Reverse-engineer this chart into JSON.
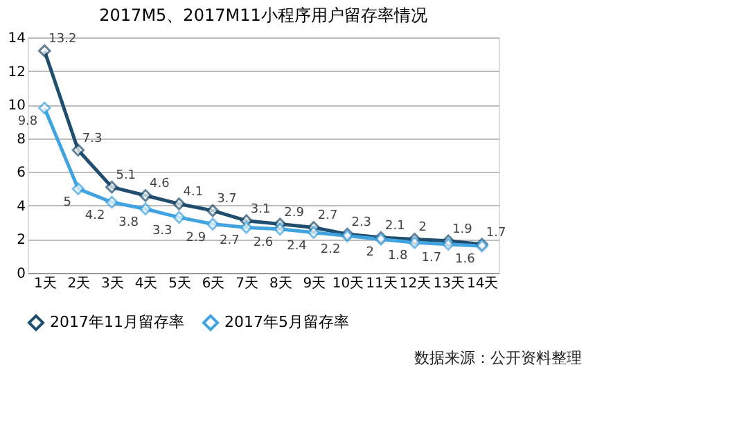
{
  "chart_data": {
    "type": "line",
    "title": "2017M5、2017M11小程序用户留存率情况",
    "categories": [
      "1天",
      "2天",
      "3天",
      "4天",
      "5天",
      "6天",
      "7天",
      "8天",
      "9天",
      "10天",
      "11天",
      "12天",
      "13天",
      "14天"
    ],
    "series": [
      {
        "name": "2017年11月留存率",
        "color": "#1f4e6e",
        "values": [
          13.2,
          7.3,
          5.1,
          4.6,
          4.1,
          3.7,
          3.1,
          2.9,
          2.7,
          2.3,
          2.1,
          2,
          1.9,
          1.7
        ]
      },
      {
        "name": "2017年5月留存率",
        "color": "#41a4e0",
        "values": [
          9.8,
          5,
          4.2,
          3.8,
          3.3,
          2.9,
          2.7,
          2.6,
          2.4,
          2.2,
          2,
          1.8,
          1.7,
          1.6
        ]
      }
    ],
    "ylim": [
      0,
      14
    ],
    "yticks": [
      0,
      2,
      4,
      6,
      8,
      10,
      12,
      14
    ],
    "grid": "y",
    "legend": "bottom",
    "marker": "diamond",
    "line_style": "solid",
    "data_labels": true,
    "annotations": [
      "数据来源：公开资料整理"
    ]
  }
}
